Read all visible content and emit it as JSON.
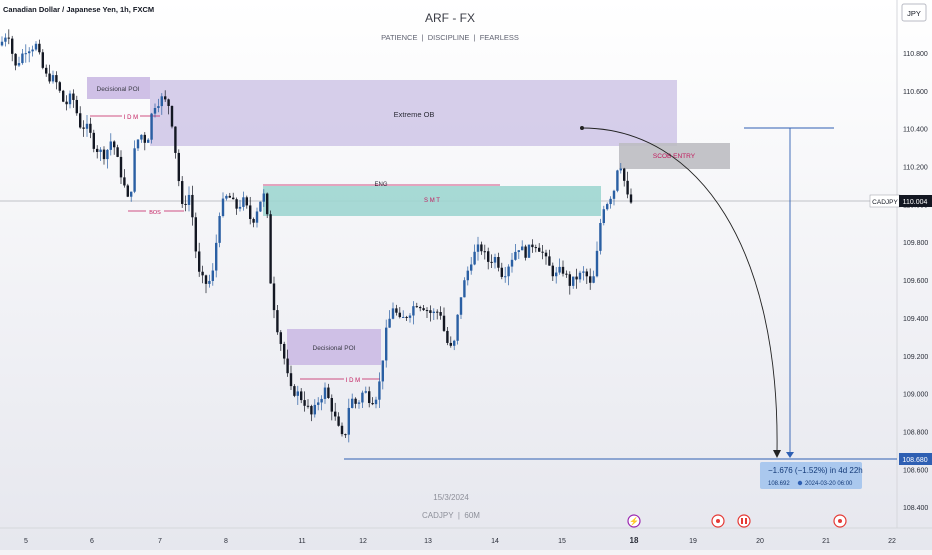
{
  "header": {
    "symbol_title": "Canadian Dollar / Japanese Yen, 1h, FXCM",
    "brand": "ARF - FX",
    "tagline": "PATIENCE  |  DISCIPLINE  |  FEARLESS",
    "currency_button": "JPY"
  },
  "watermark": {
    "date": "15/3/2024",
    "symbol": "CADJPY  |  60M"
  },
  "price_badges": {
    "current_symbol": "CADJPY",
    "current_price": "110.004",
    "target_price": "108.680"
  },
  "measure": {
    "change": "−1.676 (−1.52%) in 4d 22h",
    "detail_price": "108.692",
    "detail_datetime": "2024-03-20  06:00"
  },
  "annotations": {
    "decisional_poi_top": "Decisional POI",
    "decisional_poi_bottom": "Decisional POI",
    "extreme_ob": "Extreme OB",
    "idm_top": "I D M",
    "idm_bottom": "I D M",
    "bos": "BOS",
    "eng": "ENG",
    "smt": "S M T",
    "scob_entry": "SCOB ENTRY"
  },
  "colors": {
    "bull": "#2a5fa3",
    "bear": "#131722",
    "ob_zone": "#cfc6e6",
    "poi_zone": "#cfc0e6",
    "smt_zone": "#9fd6d0",
    "scob_zone": "#bdbdc2",
    "target_line": "#2e5fb3",
    "pink_text": "#c2185b"
  },
  "chart_data": {
    "type": "candlestick",
    "symbol": "CADJPY",
    "timeframe": "1h",
    "ylim": [
      108.29,
      111.08
    ],
    "y_ticks": [
      110.8,
      110.6,
      110.4,
      110.2,
      110.0,
      109.8,
      109.6,
      109.4,
      109.2,
      109.0,
      108.8,
      108.6,
      108.4
    ],
    "x_ticks": [
      "5",
      "6",
      "7",
      "8",
      "11",
      "12",
      "13",
      "14",
      "15",
      "18",
      "19",
      "20",
      "21",
      "22"
    ],
    "x_tick_bold": "18",
    "key_levels": {
      "current": 110.004,
      "target": 108.68,
      "projection_start": 110.38
    },
    "zones": [
      {
        "name": "Decisional POI (upper)",
        "from": 110.49,
        "to": 110.64
      },
      {
        "name": "Extreme OB",
        "from": 110.29,
        "to": 110.62
      },
      {
        "name": "SMT",
        "from": 109.93,
        "to": 110.08
      },
      {
        "name": "SCOB ENTRY",
        "from": 110.18,
        "to": 110.29
      },
      {
        "name": "Decisional POI (lower)",
        "from": 109.16,
        "to": 109.34
      }
    ],
    "measured_move": {
      "change": -1.676,
      "percent": -1.52,
      "duration": "4d 22h",
      "end_price": 108.692,
      "end_time": "2024-03-20 06:00"
    },
    "anchors": [
      [
        0,
        110.84
      ],
      [
        8,
        110.92
      ],
      [
        15,
        110.72
      ],
      [
        25,
        110.82
      ],
      [
        36,
        110.84
      ],
      [
        45,
        110.68
      ],
      [
        55,
        110.66
      ],
      [
        65,
        110.52
      ],
      [
        72,
        110.58
      ],
      [
        80,
        110.42
      ],
      [
        88,
        110.4
      ],
      [
        95,
        110.3
      ],
      [
        105,
        110.26
      ],
      [
        112,
        110.35
      ],
      [
        120,
        110.18
      ],
      [
        130,
        109.98
      ],
      [
        133,
        110.25
      ],
      [
        140,
        110.38
      ],
      [
        147,
        110.32
      ],
      [
        153,
        110.52
      ],
      [
        162,
        110.56
      ],
      [
        170,
        110.52
      ],
      [
        175,
        110.3
      ],
      [
        182,
        109.98
      ],
      [
        190,
        110.06
      ],
      [
        198,
        109.64
      ],
      [
        205,
        109.58
      ],
      [
        212,
        109.6
      ],
      [
        220,
        109.98
      ],
      [
        228,
        110.05
      ],
      [
        236,
        109.98
      ],
      [
        244,
        110.02
      ],
      [
        252,
        109.9
      ],
      [
        260,
        110.02
      ],
      [
        266,
        110.06
      ],
      [
        270,
        109.62
      ],
      [
        276,
        109.38
      ],
      [
        283,
        109.22
      ],
      [
        290,
        109.02
      ],
      [
        298,
        109.0
      ],
      [
        305,
        108.95
      ],
      [
        312,
        108.88
      ],
      [
        318,
        108.96
      ],
      [
        325,
        109.02
      ],
      [
        332,
        108.92
      ],
      [
        338,
        108.82
      ],
      [
        344,
        108.74
      ],
      [
        350,
        108.98
      ],
      [
        357,
        108.94
      ],
      [
        364,
        109.02
      ],
      [
        371,
        108.96
      ],
      [
        378,
        109.0
      ],
      [
        386,
        109.32
      ],
      [
        393,
        109.46
      ],
      [
        400,
        109.38
      ],
      [
        408,
        109.42
      ],
      [
        416,
        109.48
      ],
      [
        424,
        109.46
      ],
      [
        432,
        109.42
      ],
      [
        440,
        109.44
      ],
      [
        446,
        109.28
      ],
      [
        453,
        109.22
      ],
      [
        460,
        109.5
      ],
      [
        466,
        109.62
      ],
      [
        472,
        109.72
      ],
      [
        480,
        109.78
      ],
      [
        488,
        109.7
      ],
      [
        496,
        109.72
      ],
      [
        503,
        109.62
      ],
      [
        510,
        109.7
      ],
      [
        518,
        109.78
      ],
      [
        526,
        109.74
      ],
      [
        534,
        109.8
      ],
      [
        541,
        109.76
      ],
      [
        548,
        109.68
      ],
      [
        555,
        109.62
      ],
      [
        562,
        109.66
      ],
      [
        570,
        109.58
      ],
      [
        578,
        109.62
      ],
      [
        585,
        109.64
      ],
      [
        592,
        109.55
      ],
      [
        597,
        109.74
      ],
      [
        602,
        109.98
      ],
      [
        608,
        110.02
      ],
      [
        614,
        110.08
      ],
      [
        619,
        110.25
      ],
      [
        623,
        110.16
      ],
      [
        627,
        110.04
      ],
      [
        631,
        110.01
      ]
    ]
  }
}
